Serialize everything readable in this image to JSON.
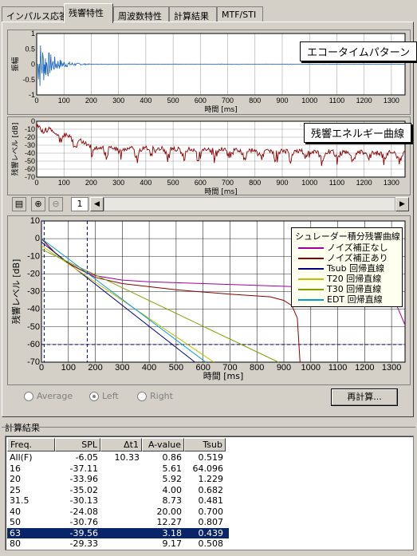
{
  "tabs": [
    "インパルス応答",
    "残響特性",
    "周波数特性",
    "計算結果",
    "MTF/STI"
  ],
  "active_tab": "残響特性",
  "chart_data": [
    {
      "type": "line",
      "title": "エコータイムパターン",
      "xlabel": "時間 [ms]",
      "ylabel": "振幅",
      "xlim": [
        0,
        1350
      ],
      "xticks": [
        "0",
        "100",
        "200",
        "300",
        "400",
        "500",
        "600",
        "700",
        "800",
        "900",
        "1000",
        "1100",
        "1200",
        "1300"
      ],
      "yticks": [
        "1",
        "0.5",
        "0",
        "-0.5",
        "-1"
      ],
      "ylim": [
        -1,
        1
      ],
      "colors": [
        "#1560bd"
      ]
    },
    {
      "type": "line",
      "title": "残響エネルギー曲線",
      "xlabel": "時間 [ms]",
      "ylabel": "残響レベル [dB]",
      "xlim": [
        0,
        1350
      ],
      "ylim": [
        -70,
        0
      ],
      "xticks": [
        "0",
        "100",
        "200",
        "300",
        "400",
        "500",
        "600",
        "700",
        "800",
        "900",
        "1000",
        "1100",
        "1200",
        "1300"
      ],
      "yticks": [
        "0",
        "-10",
        "-20",
        "-30",
        "-40",
        "-50",
        "-60",
        "-70"
      ],
      "colors": [
        "#8b0000"
      ]
    },
    {
      "type": "line",
      "xlabel": "時間 [ms]",
      "ylabel": "残響レベル [dB]",
      "xlim": [
        0,
        1350
      ],
      "ylim": [
        -70,
        10
      ],
      "xticks": [
        "0",
        "100",
        "200",
        "300",
        "400",
        "500",
        "600",
        "700",
        "800",
        "900",
        "1000",
        "1100",
        "1200",
        "1300"
      ],
      "yticks": [
        "10",
        "0",
        "-10",
        "-20",
        "-30",
        "-40",
        "-50",
        "-60",
        "-70"
      ],
      "legend_title": "シュレーダー積分残響曲線",
      "legend_position": "top-right",
      "series": [
        {
          "name": "ノイズ補正なし",
          "color": "#a000a0",
          "x": [
            0,
            50,
            100,
            150,
            200,
            300,
            400,
            600,
            800,
            1000,
            1200,
            1300,
            1350
          ],
          "y": [
            0,
            -8,
            -14,
            -18,
            -21,
            -23.5,
            -24.5,
            -25.5,
            -26.5,
            -27.5,
            -28.5,
            -31,
            -49
          ]
        },
        {
          "name": "ノイズ補正あり",
          "color": "#8b0000",
          "x": [
            0,
            50,
            100,
            150,
            200,
            300,
            500,
            700,
            850,
            900,
            930,
            950,
            960
          ],
          "y": [
            0,
            -8,
            -14,
            -18,
            -22,
            -25.5,
            -29,
            -31.5,
            -33,
            -35,
            -38,
            -45,
            -70
          ]
        },
        {
          "name": "Tsub 回帰直線",
          "color": "#000080",
          "x": [
            0,
            570
          ],
          "y": [
            -2,
            -70
          ]
        },
        {
          "name": "T20 回帰直線",
          "color": "#c0c000",
          "x": [
            0,
            640
          ],
          "y": [
            -4,
            -70
          ]
        },
        {
          "name": "T30 回帰直線",
          "color": "#80a000",
          "x": [
            0,
            880
          ],
          "y": [
            -6,
            -70
          ]
        },
        {
          "name": "EDT 回帰直線",
          "color": "#00a0d0",
          "x": [
            0,
            610
          ],
          "y": [
            0,
            -70
          ]
        }
      ]
    }
  ],
  "toolbar": {
    "page_number": "1"
  },
  "radios": [
    {
      "label": "Average",
      "checked": false
    },
    {
      "label": "Left",
      "checked": true
    },
    {
      "label": "Right",
      "checked": false
    }
  ],
  "recalc_label": "再計算...",
  "results_title": "計算結果",
  "table": {
    "headers": [
      "Freq.",
      "SPL",
      "Δt1",
      "A-value",
      "Tsub"
    ],
    "rows": [
      [
        "All(F)",
        "-6.05",
        "10.33",
        "0.86",
        "0.519"
      ],
      [
        "16",
        "-37.11",
        "",
        "5.61",
        "64.096"
      ],
      [
        "20",
        "-33.96",
        "",
        "5.92",
        "1.229"
      ],
      [
        "25",
        "-35.02",
        "",
        "4.00",
        "0.682"
      ],
      [
        "31.5",
        "-30.13",
        "",
        "8.73",
        "0.481"
      ],
      [
        "40",
        "-24.08",
        "",
        "20.00",
        "0.700"
      ],
      [
        "50",
        "-30.76",
        "",
        "12.27",
        "0.807"
      ],
      [
        "63",
        "-39.56",
        "",
        "3.18",
        "0.439"
      ],
      [
        "80",
        "-29.33",
        "",
        "9.17",
        "0.508"
      ]
    ],
    "selected_row": 7
  }
}
